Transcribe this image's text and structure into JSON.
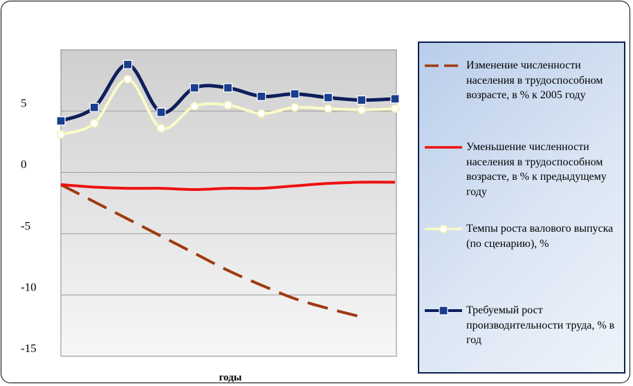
{
  "chart_data": {
    "type": "line",
    "title": "",
    "xlabel": "годы",
    "ylabel": "",
    "ylim": [
      -15,
      10
    ],
    "yticks": [
      5,
      0,
      -5,
      -10,
      -15
    ],
    "grid": true,
    "legend_position": "right",
    "x": [
      1,
      2,
      3,
      4,
      5,
      6,
      7,
      8,
      9,
      10,
      11
    ],
    "series": [
      {
        "name": "Изменение численности населения в трудоспособном возрасте, в % к 2005 году",
        "color": "#9e3a10",
        "style": "dashed",
        "marker": "none",
        "values": [
          -1.0,
          -2.4,
          -3.8,
          -5.2,
          -6.6,
          -8.0,
          -9.2,
          -10.3,
          -11.1,
          -11.8,
          null
        ]
      },
      {
        "name": "Уменьшение численности населения в трудоспособном возрасте, в % к предыдущему году",
        "color": "#ee1111",
        "style": "solid",
        "marker": "none",
        "values": [
          -1.0,
          -1.2,
          -1.3,
          -1.3,
          -1.4,
          -1.3,
          -1.3,
          -1.1,
          -0.9,
          -0.8,
          -0.8
        ]
      },
      {
        "name": "Темпы роста валового выпуска (по сценарию), %",
        "color": "#fbfbc8",
        "style": "solid",
        "marker": "circle",
        "values": [
          3.1,
          4.0,
          7.6,
          3.6,
          5.4,
          5.5,
          4.8,
          5.3,
          5.2,
          5.1,
          5.2
        ]
      },
      {
        "name": "Требуемый рост производительности труда, % в год",
        "color": "#0d1f5c",
        "style": "solid",
        "marker": "square",
        "values": [
          4.2,
          5.3,
          8.8,
          4.9,
          6.9,
          6.9,
          6.2,
          6.4,
          6.1,
          5.9,
          6.0
        ]
      }
    ]
  }
}
